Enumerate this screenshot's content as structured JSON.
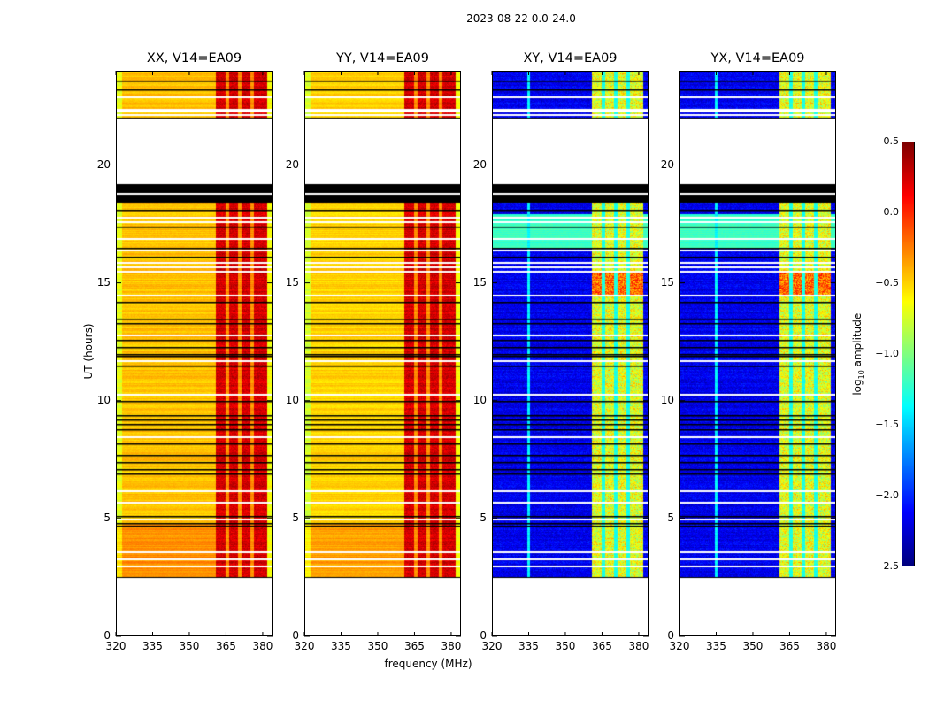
{
  "figure": {
    "suptitle": "2023-08-22 0.0-24.0"
  },
  "chart_data": {
    "type": "heatmap",
    "title": "2023-08-22 0.0-24.0",
    "xlabel": "frequency (MHz)",
    "ylabel": "UT (hours)",
    "xlim": [
      320,
      384
    ],
    "ylim": [
      0,
      24
    ],
    "xticks": [
      320,
      335,
      350,
      365,
      380
    ],
    "yticks": [
      0,
      5,
      10,
      15,
      20
    ],
    "panels": [
      {
        "title": "XX, V14=EA09",
        "kind": "parallel"
      },
      {
        "title": "YY, V14=EA09",
        "kind": "parallel"
      },
      {
        "title": "XY, V14=EA09",
        "kind": "cross"
      },
      {
        "title": "YX, V14=EA09",
        "kind": "cross"
      }
    ],
    "data_time_ranges_hours": [
      [
        2.5,
        18.4
      ],
      [
        22.0,
        24.0
      ]
    ],
    "flagged_black_range_hours": [
      18.4,
      19.2
    ],
    "flagged_black_rows_hours": [
      23.6,
      23.2,
      18.1,
      17.4,
      16.5,
      16.1,
      14.2,
      13.5,
      13.3,
      12.6,
      12.3,
      12.0,
      11.9,
      11.5,
      10.0,
      9.4,
      9.2,
      9.0,
      8.8,
      8.2,
      7.7,
      7.4,
      7.1,
      6.9,
      5.1,
      4.8,
      4.7
    ],
    "flagged_white_rows_hours": [
      22.9,
      22.4,
      22.3,
      22.15,
      18.8,
      17.8,
      17.6,
      16.9,
      16.4,
      15.9,
      15.7,
      15.5,
      14.5,
      12.8,
      11.7,
      10.3,
      8.5,
      6.2,
      5.7,
      5.0,
      3.6,
      3.3,
      3.0
    ],
    "bright_band_mhz": [
      361,
      382
    ],
    "parallel_log10_amp": {
      "continuum": -0.45,
      "band": 0.15,
      "low_time_offset_below_4.8h": 0.15
    },
    "cross_log10_amp": {
      "continuum": -2.3,
      "band": -0.7
    },
    "colorbar": {
      "label": "log10 amplitude",
      "label_main": "log",
      "label_sub": "10",
      "label_rest": " amplitude",
      "range": [
        -2.5,
        0.5
      ],
      "colormap": "jet",
      "ticks": [
        "0.5",
        "0.0",
        "−0.5",
        "−1.0",
        "−1.5",
        "−2.0",
        "−2.5"
      ]
    }
  }
}
